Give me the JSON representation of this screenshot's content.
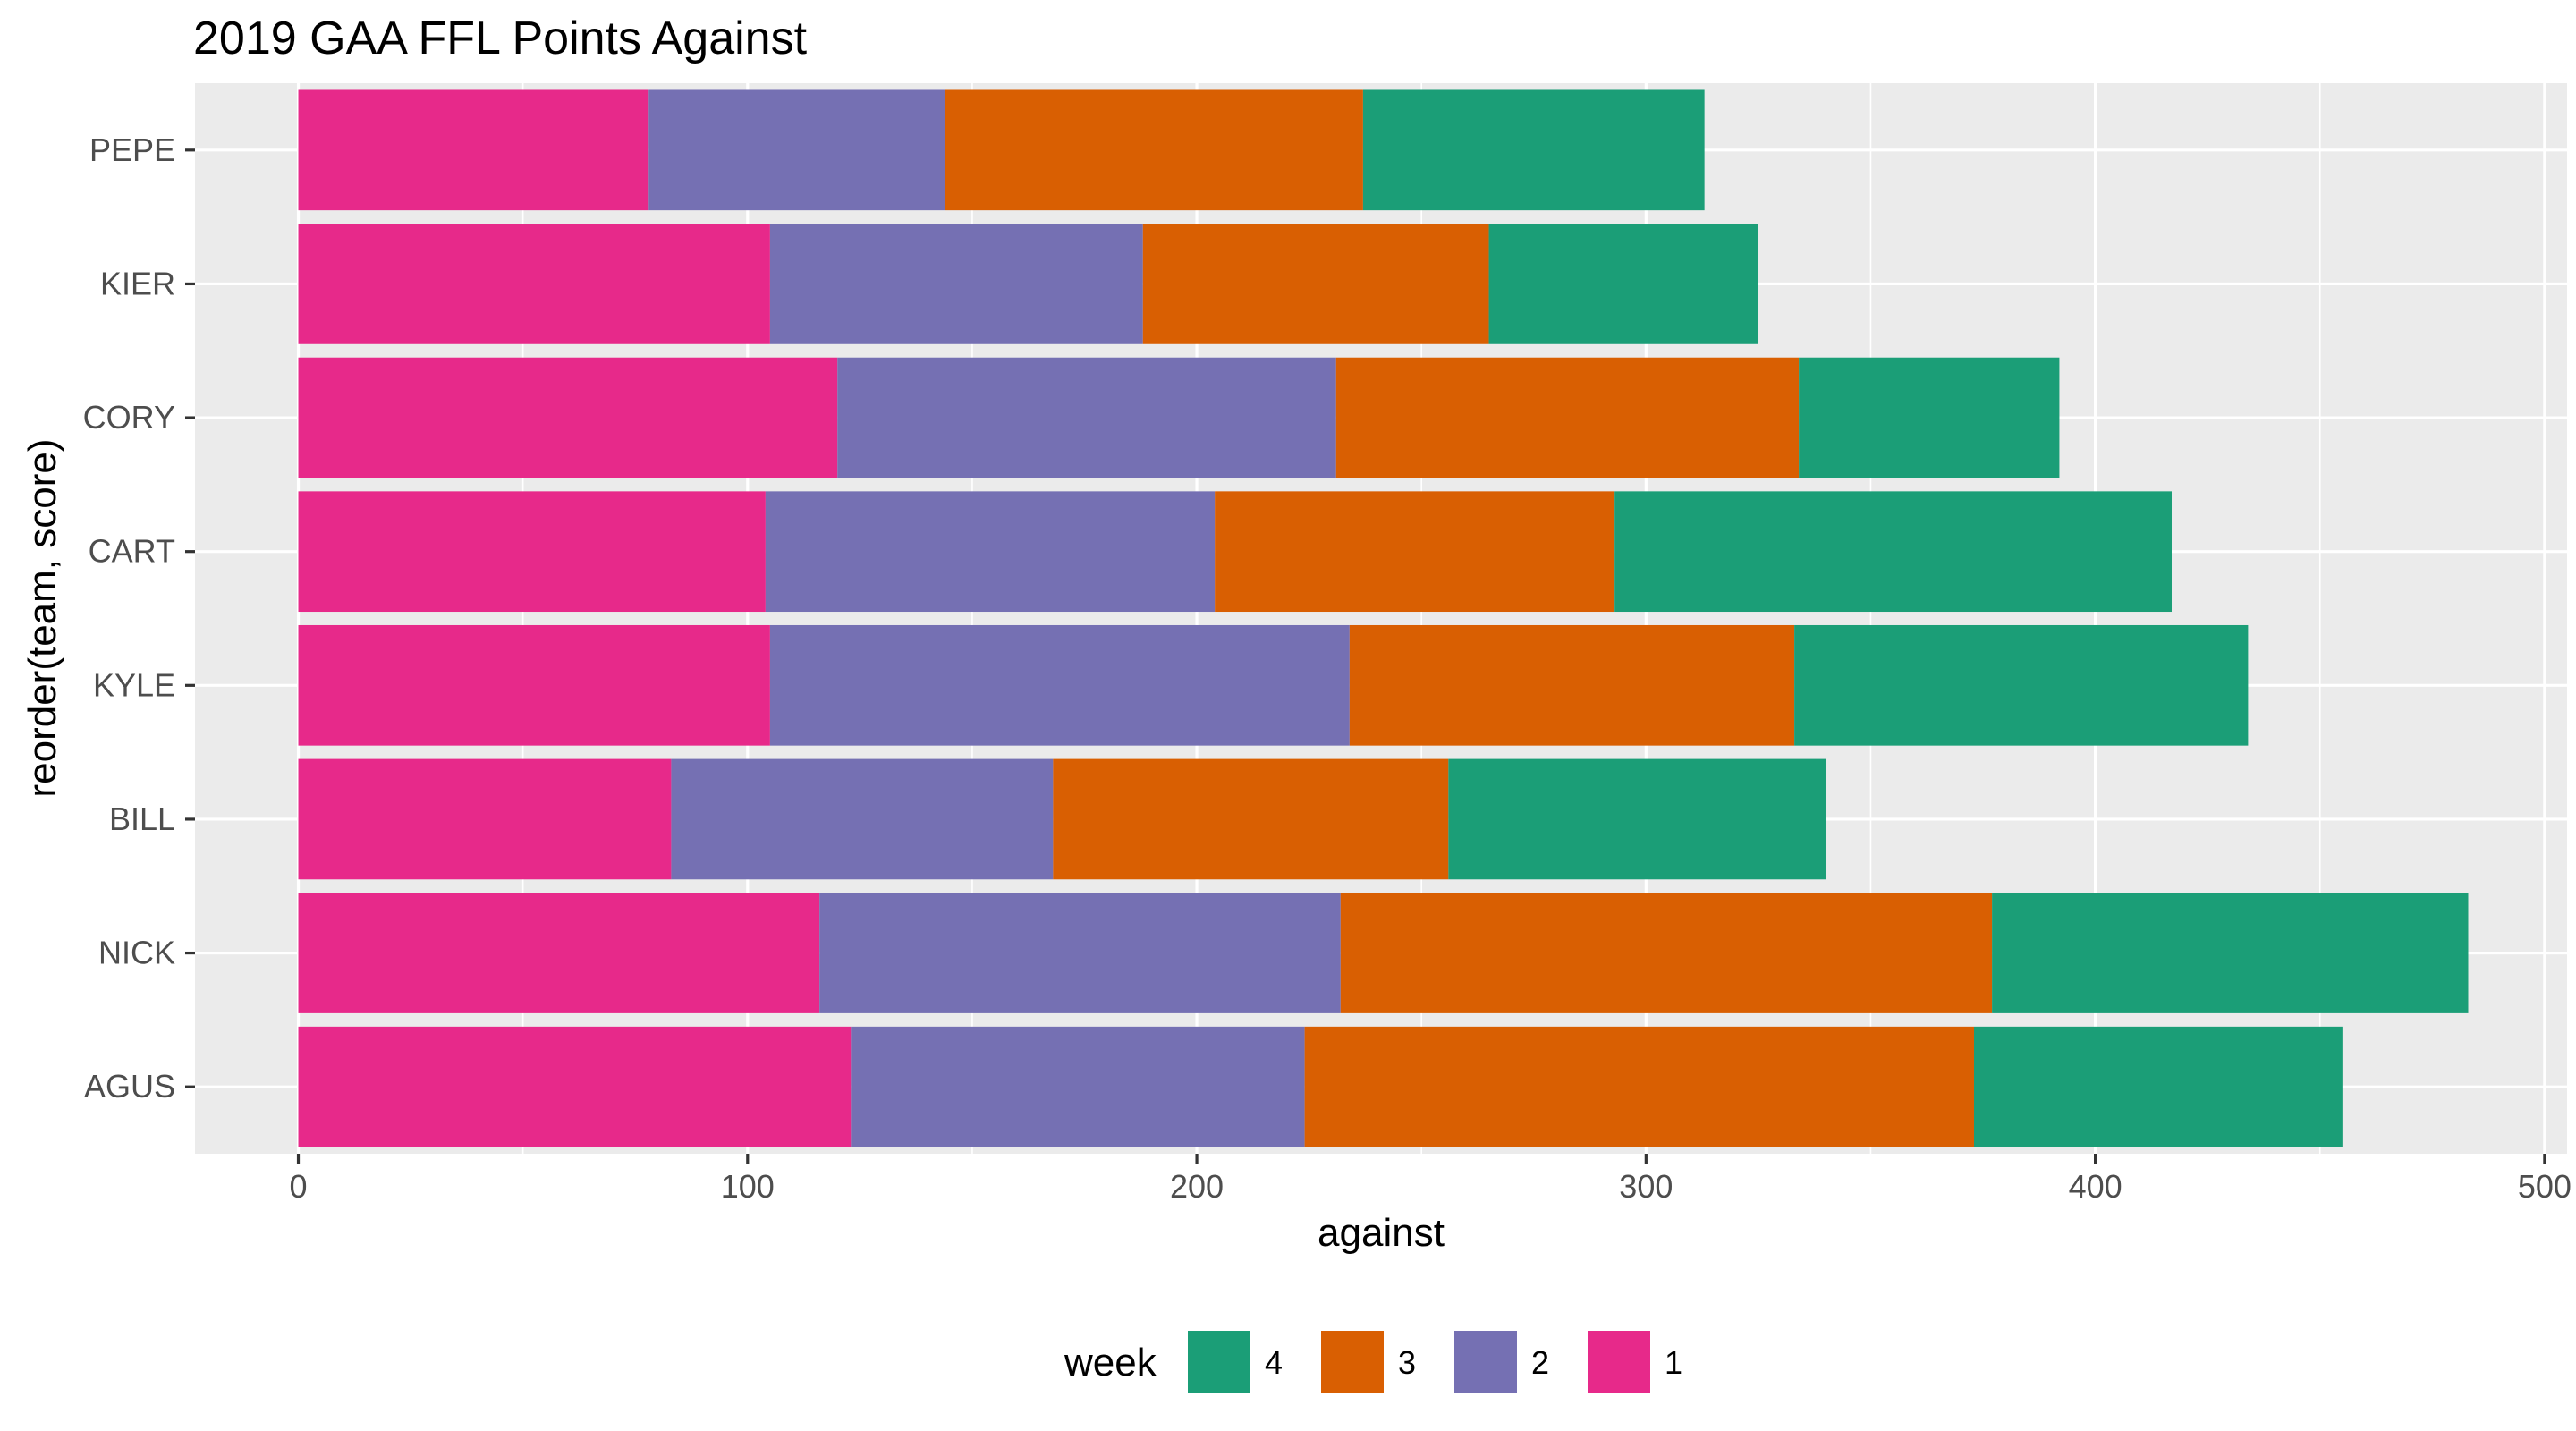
{
  "chart_data": {
    "type": "bar",
    "orientation": "horizontal",
    "stacked": true,
    "title": "2019 GAA FFL Points Against",
    "xlabel": "against",
    "ylabel": "reorder(team, score)",
    "xlim": [
      -23,
      505
    ],
    "xticks": [
      0,
      100,
      200,
      300,
      400,
      500
    ],
    "xticks_minor": [
      50,
      150,
      250,
      350,
      450
    ],
    "grid": true,
    "legend_position": "bottom",
    "legend_title": "week",
    "categories": [
      "PEPE",
      "KIER",
      "CORY",
      "CART",
      "KYLE",
      "BILL",
      "NICK",
      "AGUS"
    ],
    "series": [
      {
        "name": "1",
        "color": "#E7298A",
        "values": [
          78,
          105,
          120,
          104,
          105,
          83,
          116,
          123
        ]
      },
      {
        "name": "2",
        "color": "#7570B3",
        "values": [
          66,
          83,
          111,
          100,
          129,
          85,
          116,
          101
        ]
      },
      {
        "name": "3",
        "color": "#D95F02",
        "values": [
          93,
          77,
          103,
          89,
          99,
          88,
          145,
          149
        ]
      },
      {
        "name": "4",
        "color": "#1B9E77",
        "values": [
          76,
          60,
          58,
          124,
          101,
          84,
          106,
          82
        ]
      }
    ],
    "legend_order": [
      "4",
      "3",
      "2",
      "1"
    ]
  }
}
